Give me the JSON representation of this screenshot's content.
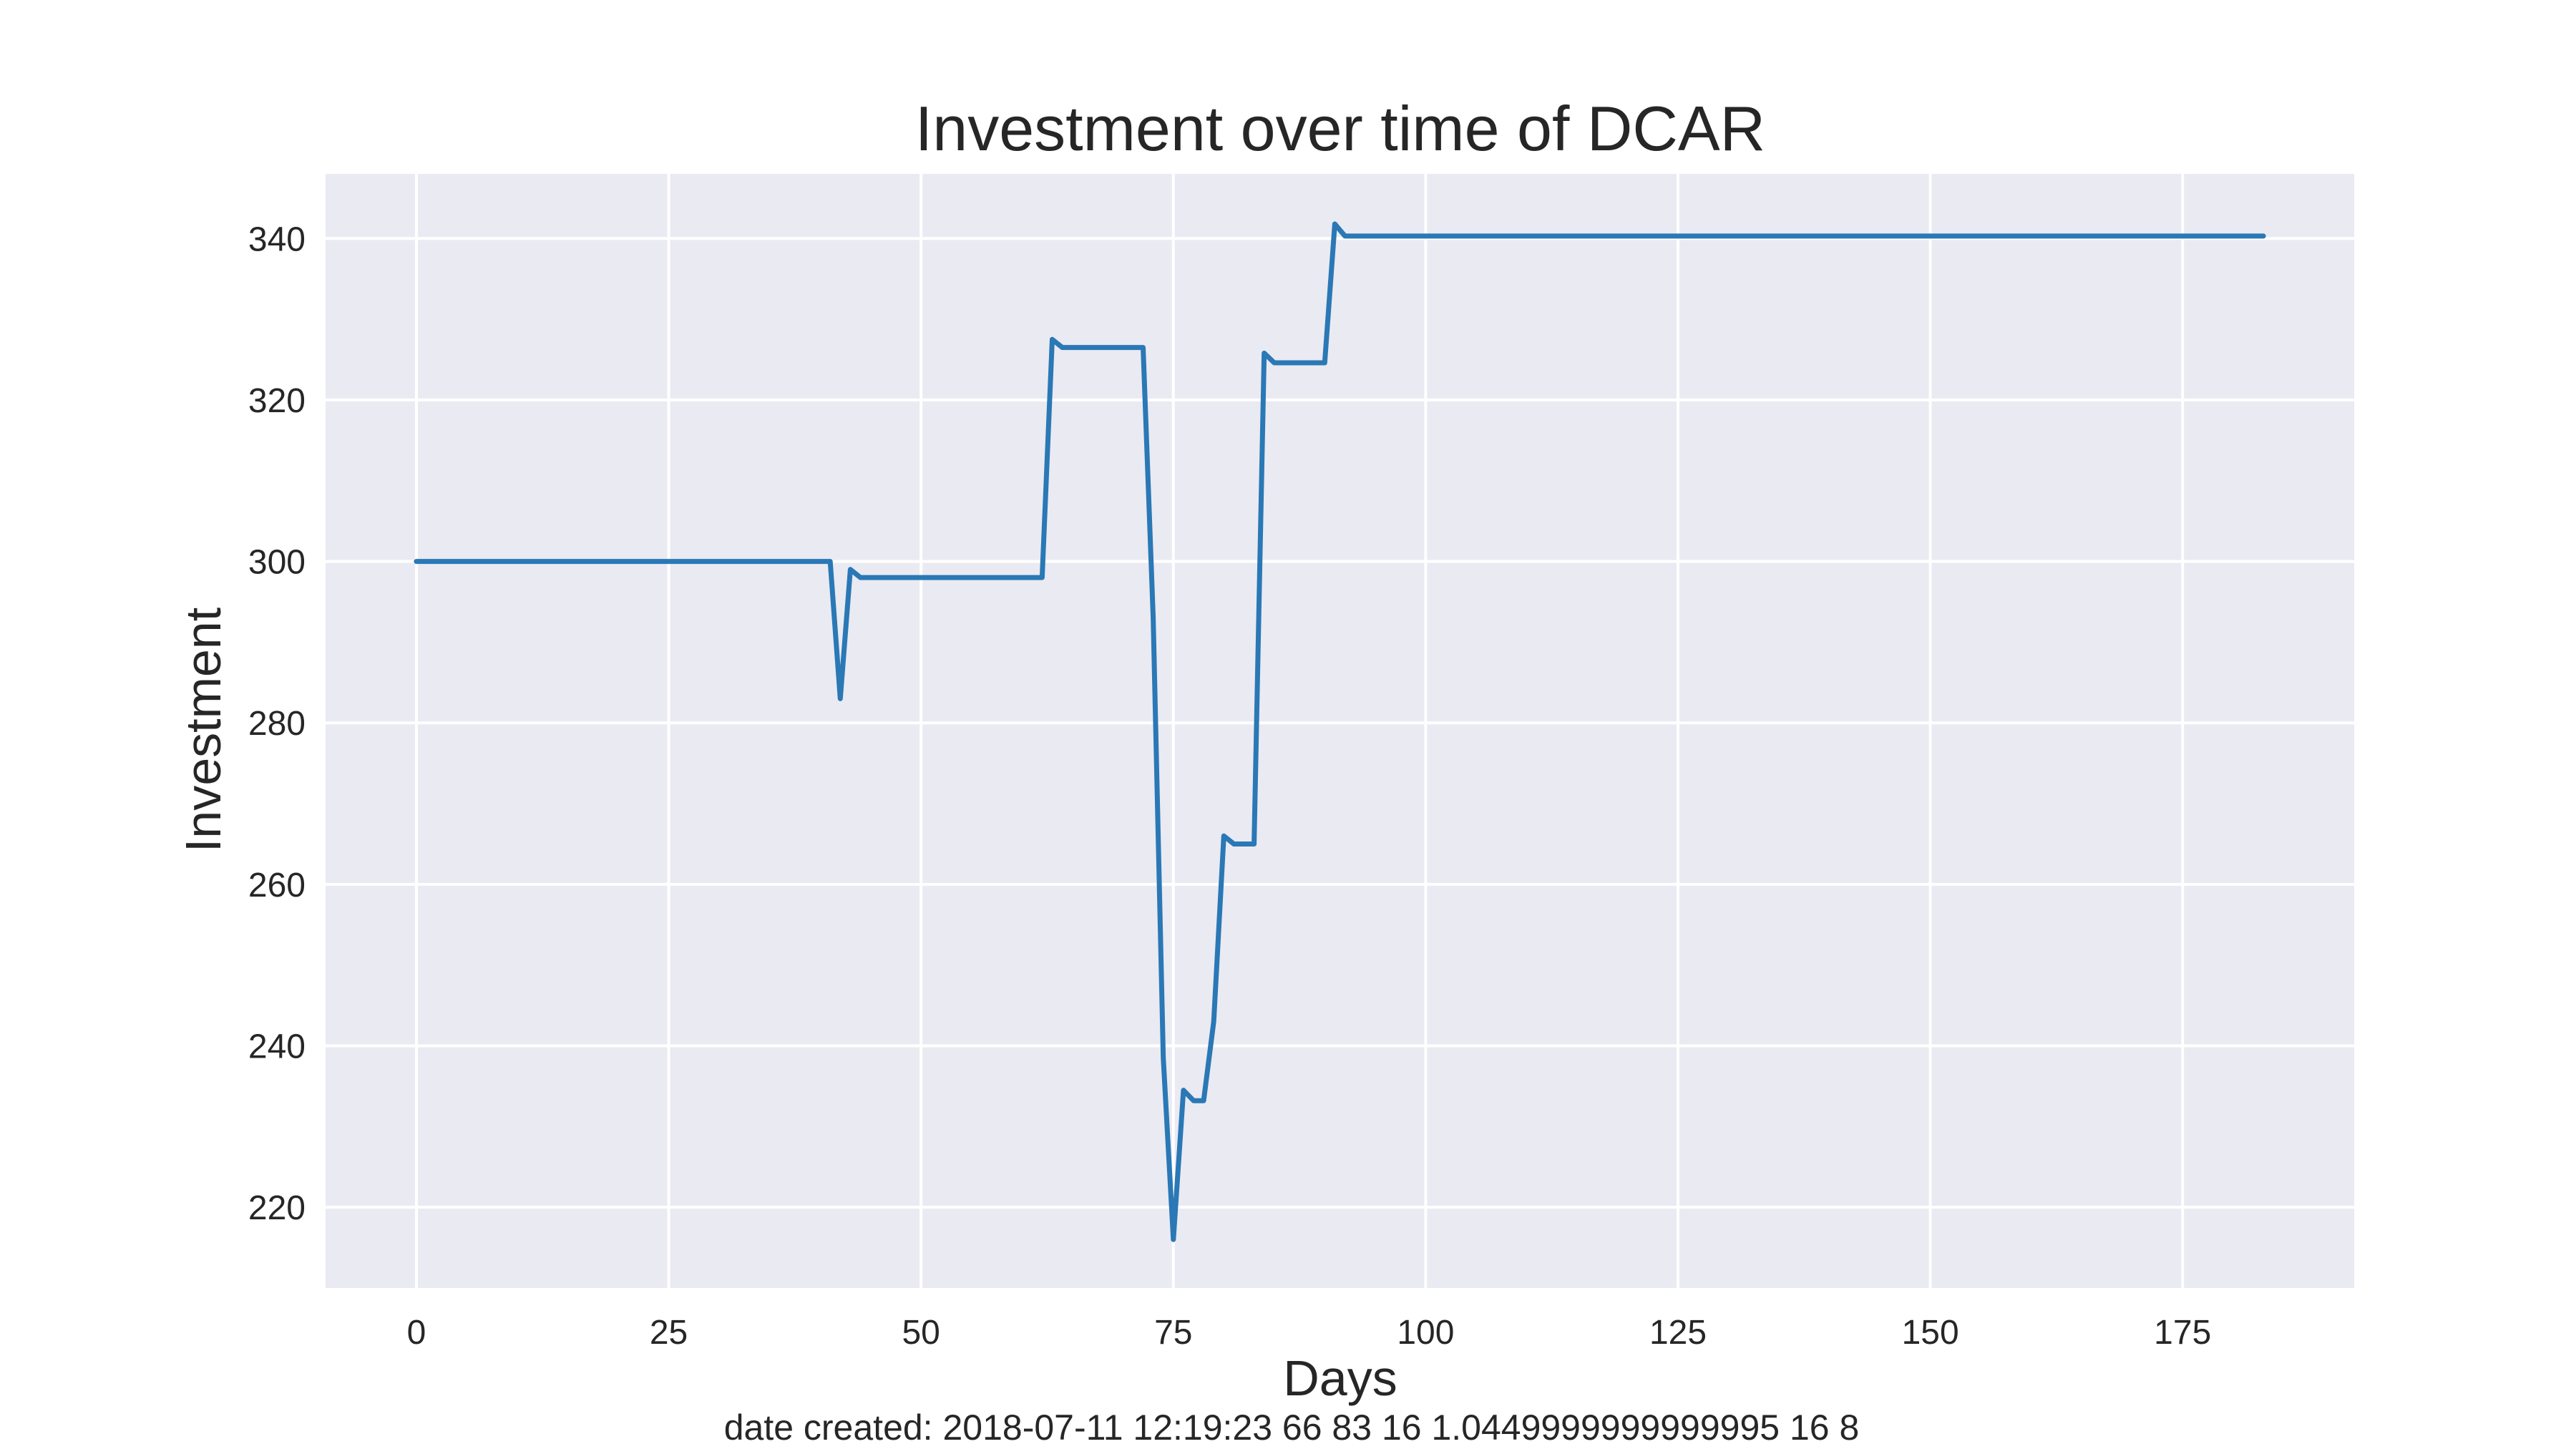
{
  "chart_data": {
    "type": "line",
    "title": "Investment over time of DCAR",
    "xlabel": "Days",
    "ylabel": "Investment",
    "xlim": [
      -9,
      192
    ],
    "ylim": [
      210,
      348
    ],
    "xticks": [
      0,
      25,
      50,
      75,
      100,
      125,
      150,
      175
    ],
    "yticks": [
      220,
      240,
      260,
      280,
      300,
      320,
      340
    ],
    "grid": true,
    "legend": "none",
    "series": [
      {
        "color": "#2a78b5",
        "x": [
          0,
          41,
          42,
          43,
          44,
          62,
          63,
          64,
          72,
          73,
          74,
          75,
          76,
          77,
          78,
          79,
          80,
          81,
          83,
          84,
          85,
          90,
          91,
          92,
          183
        ],
        "y": [
          300,
          300,
          283,
          299,
          298,
          298,
          327.5,
          326.5,
          326.5,
          293,
          238.5,
          216,
          234.5,
          233.2,
          233.2,
          243,
          266,
          265,
          265,
          325.8,
          324.6,
          324.6,
          341.8,
          340.3,
          340.3
        ]
      }
    ],
    "footer": "date created: 2018-07-11 12:19:23 66 83 16 1.0449999999999995 16 8"
  },
  "colors": {
    "plot_background": "#eaeaf2",
    "grid": "#ffffff",
    "line": "#2a78b5",
    "text": "#262626"
  }
}
